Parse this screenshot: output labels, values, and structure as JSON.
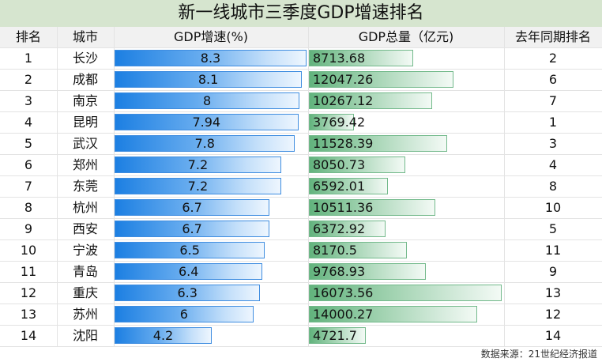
{
  "title": "新一线城市三季度GDP增速排名",
  "source": "数据来源：21世纪经济报道",
  "colors": {
    "title_bg": "#d6e5cf",
    "growth_bar": "#1c7fe2",
    "gdp_bar": "#62b37d"
  },
  "chart_data": {
    "type": "table",
    "title": "新一线城市三季度GDP增速排名",
    "columns": [
      "排名",
      "城市",
      "GDP增速(%)",
      "GDP总量（亿元)",
      "去年同期排名"
    ],
    "rows": [
      {
        "rank": "1",
        "city": "长沙",
        "growth": "8.3",
        "gdp": "8713.68",
        "prev": "2"
      },
      {
        "rank": "2",
        "city": "成都",
        "growth": "8.1",
        "gdp": "12047.26",
        "prev": "6"
      },
      {
        "rank": "3",
        "city": "南京",
        "growth": "8",
        "gdp": "10267.12",
        "prev": "7"
      },
      {
        "rank": "4",
        "city": "昆明",
        "growth": "7.94",
        "gdp": "3769.42",
        "prev": "1"
      },
      {
        "rank": "5",
        "city": "武汉",
        "growth": "7.8",
        "gdp": "11528.39",
        "prev": "3"
      },
      {
        "rank": "6",
        "city": "郑州",
        "growth": "7.2",
        "gdp": "8050.73",
        "prev": "4"
      },
      {
        "rank": "7",
        "city": "东莞",
        "growth": "7.2",
        "gdp": "6592.01",
        "prev": "8"
      },
      {
        "rank": "8",
        "city": "杭州",
        "growth": "6.7",
        "gdp": "10511.36",
        "prev": "10"
      },
      {
        "rank": "9",
        "city": "西安",
        "growth": "6.7",
        "gdp": "6372.92",
        "prev": "5"
      },
      {
        "rank": "10",
        "city": "宁波",
        "growth": "6.5",
        "gdp": "8170.5",
        "prev": "11"
      },
      {
        "rank": "11",
        "city": "青岛",
        "growth": "6.4",
        "gdp": "9768.93",
        "prev": "9"
      },
      {
        "rank": "12",
        "city": "重庆",
        "growth": "6.3",
        "gdp": "16073.56",
        "prev": "13"
      },
      {
        "rank": "13",
        "city": "苏州",
        "growth": "6",
        "gdp": "14000.27",
        "prev": "12"
      },
      {
        "rank": "14",
        "city": "沈阳",
        "growth": "4.2",
        "gdp": "4721.7",
        "prev": "14"
      }
    ]
  }
}
